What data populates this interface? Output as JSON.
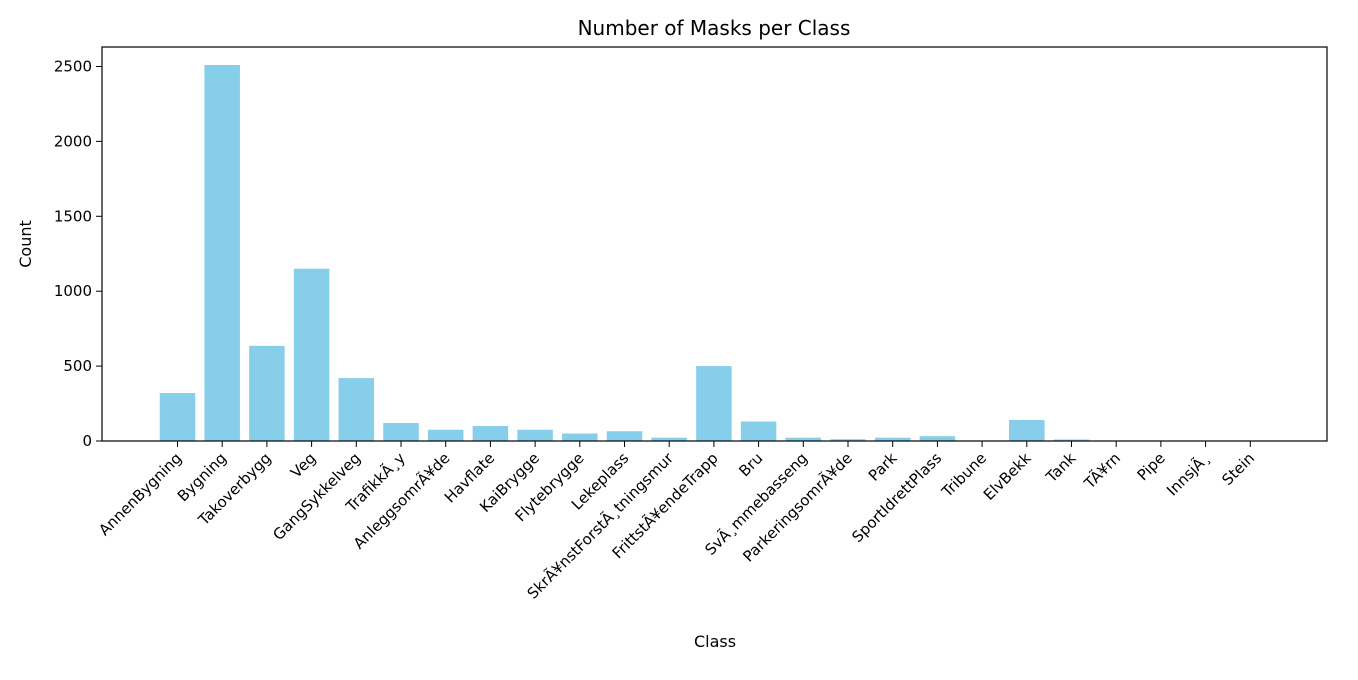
{
  "chart_data": {
    "type": "bar",
    "title": "Number of Masks per Class",
    "xlabel": "Class",
    "ylabel": "Count",
    "ylim": [
      0,
      2630
    ],
    "yticks": [
      0,
      500,
      1000,
      1500,
      2000,
      2500
    ],
    "grid": false,
    "bar_color": "#87ceeb",
    "categories": [
      "AnnenBygning",
      "Bygning",
      "Takoverbygg",
      "Veg",
      "GangSykkelveg",
      "TrafikkÃ¸y",
      "AnleggsomrÃ¥de",
      "Havflate",
      "KaiBrygge",
      "Flytebrygge",
      "Lekeplass",
      "SkrÃ¥nstForstÃ¸tningsmur",
      "FrittstÃ¥endeTrapp",
      "Bru",
      "SvÃ¸mmebasseng",
      "ParkeringsomrÃ¥de",
      "Park",
      "SportIdrettPlass",
      "Tribune",
      "ElvBekk",
      "Tank",
      "TÃ¥rn",
      "Pipe",
      "InnsjÃ¸",
      "Stein"
    ],
    "values": [
      320,
      2510,
      635,
      1150,
      420,
      120,
      75,
      100,
      75,
      50,
      65,
      22,
      500,
      130,
      22,
      12,
      22,
      32,
      2,
      140,
      10,
      2,
      2,
      2,
      1
    ]
  }
}
